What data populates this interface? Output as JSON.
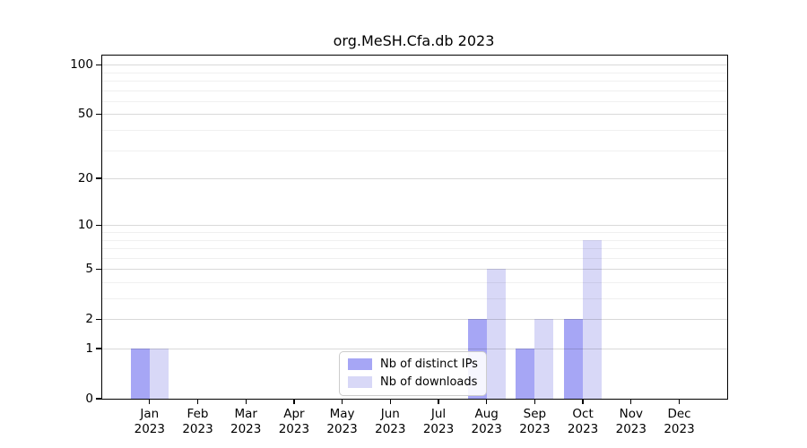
{
  "chart_data": {
    "type": "bar",
    "title": "org.MeSH.Cfa.db 2023",
    "categories": [
      "Jan",
      "Feb",
      "Mar",
      "Apr",
      "May",
      "Jun",
      "Jul",
      "Aug",
      "Sep",
      "Oct",
      "Nov",
      "Dec"
    ],
    "year_label": "2023",
    "series": [
      {
        "name": "Nb of distinct IPs",
        "color": "#a6a6f5",
        "values": [
          1,
          0,
          0,
          0,
          0,
          0,
          0,
          2,
          1,
          2,
          0,
          0
        ]
      },
      {
        "name": "Nb of downloads",
        "color": "#d8d8f7",
        "values": [
          1,
          0,
          0,
          0,
          0,
          0,
          0,
          5,
          2,
          8,
          0,
          0
        ]
      }
    ],
    "xlabel": "",
    "ylabel": "",
    "y_axis": {
      "scale": "log1p",
      "tick_values": [
        0,
        1,
        2,
        5,
        10,
        20,
        50,
        100
      ],
      "tick_labels": [
        "0",
        "1",
        "2",
        "5",
        "10",
        "20",
        "50",
        "100"
      ],
      "minor_gridline_values": [
        3,
        4,
        6,
        7,
        8,
        9,
        30,
        40,
        60,
        70,
        80,
        90
      ],
      "axis_top_value": 113.6,
      "ylim": [
        0,
        113.6
      ]
    },
    "grid": true,
    "legend": {
      "position": "bottom-center",
      "entries": [
        "Nb of distinct IPs",
        "Nb of downloads"
      ]
    }
  }
}
